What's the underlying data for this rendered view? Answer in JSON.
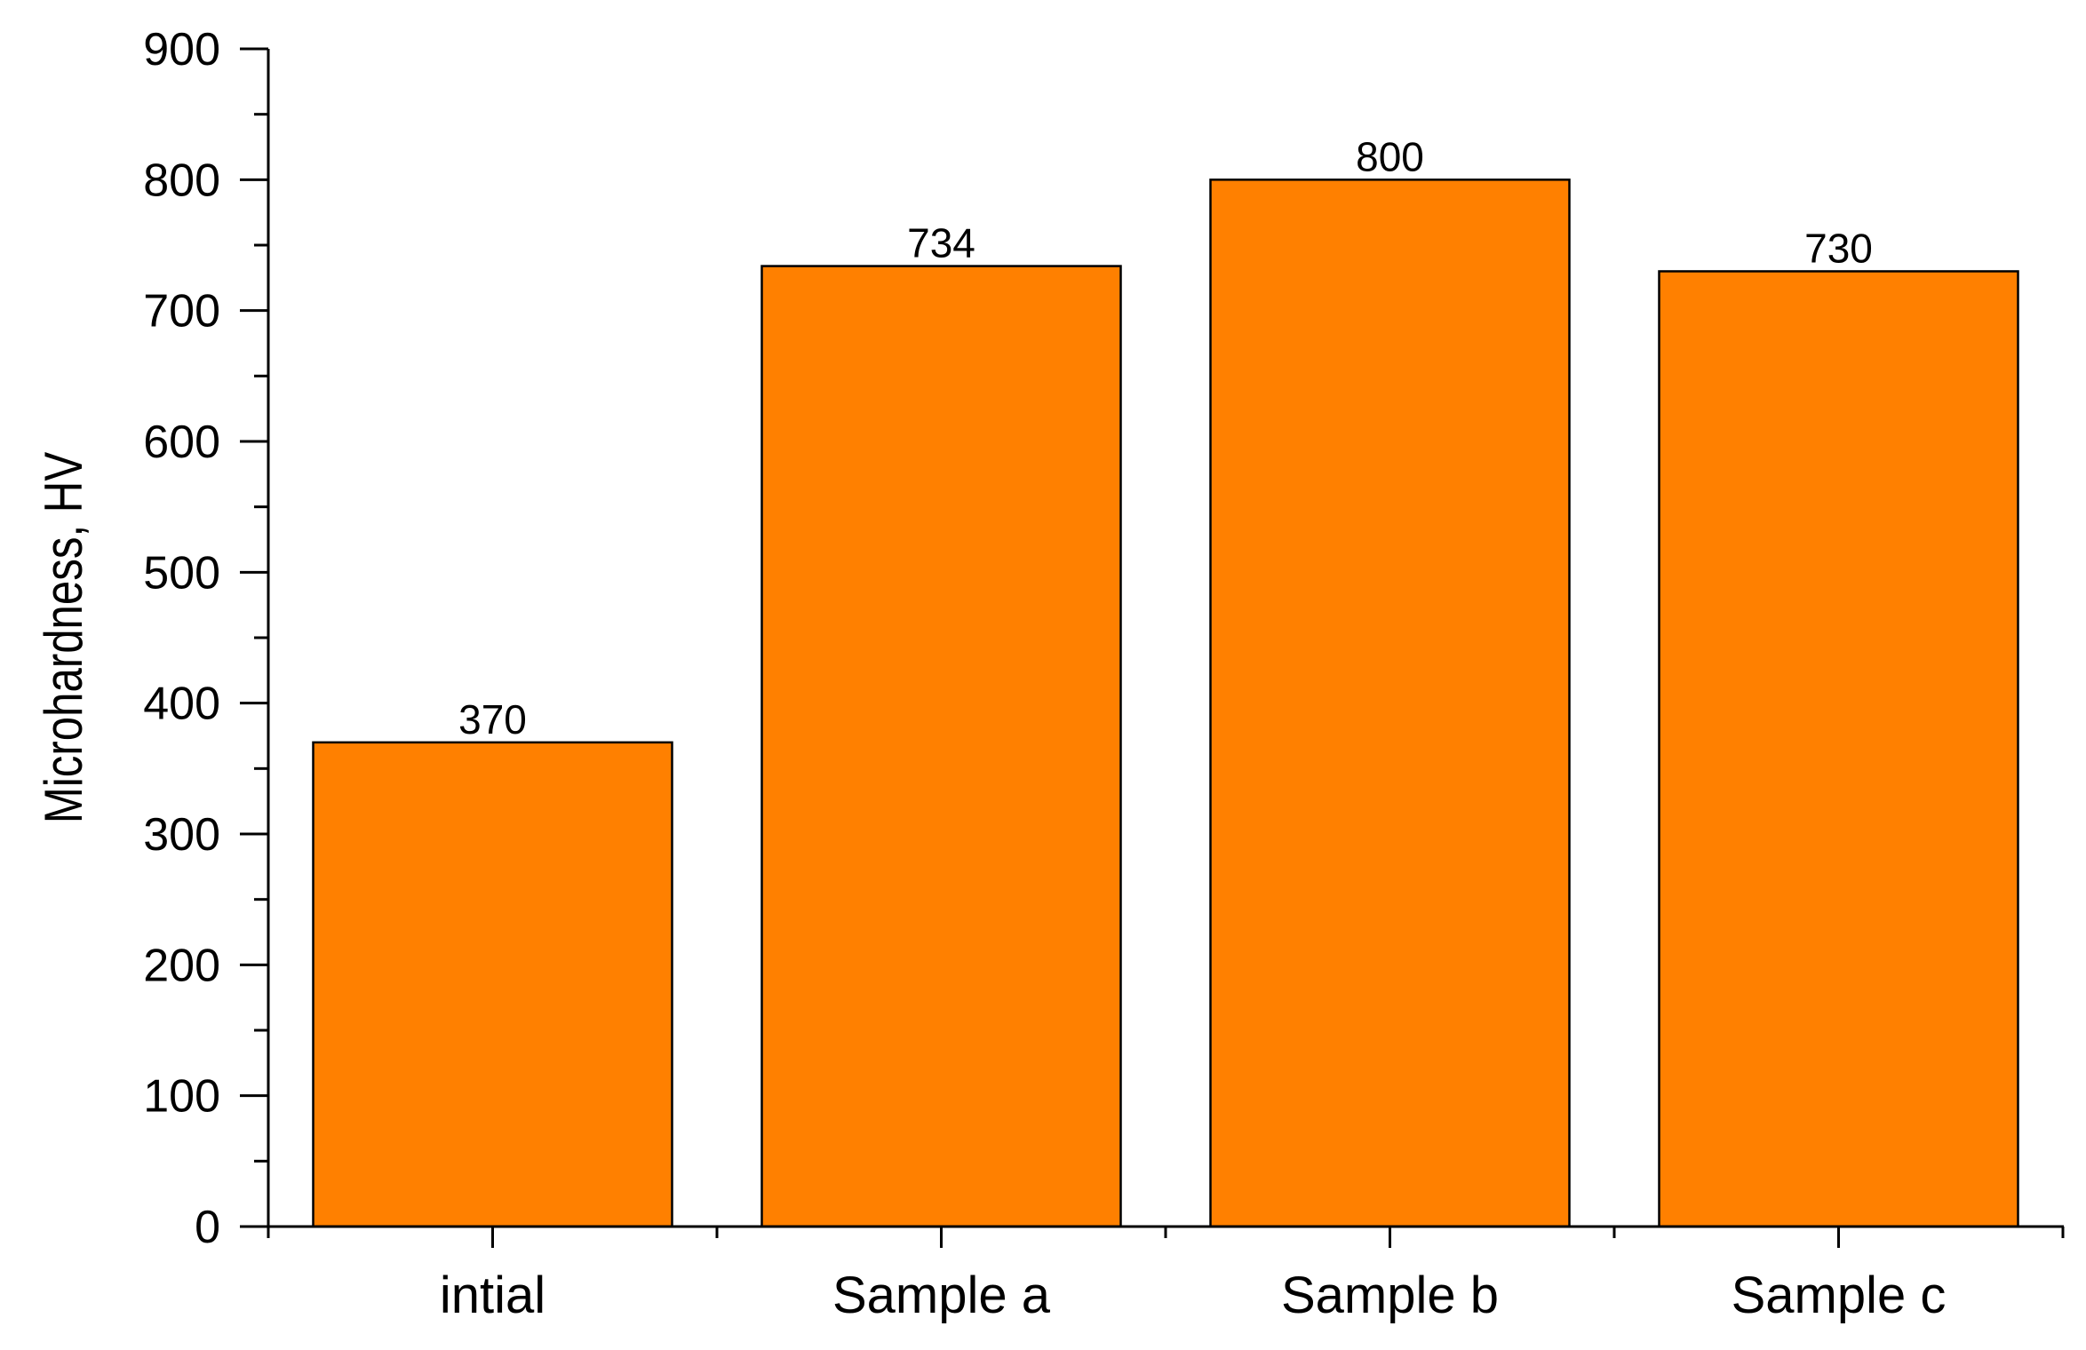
{
  "chart_data": {
    "type": "bar",
    "categories": [
      "intial",
      "Sample a",
      "Sample b",
      "Sample c"
    ],
    "values": [
      370,
      734,
      800,
      730
    ],
    "data_labels": [
      "370",
      "734",
      "800",
      "730"
    ],
    "title": "",
    "xlabel": "",
    "ylabel": "Microhardness, HV",
    "ylim": [
      0,
      900
    ],
    "yticks": [
      0,
      100,
      200,
      300,
      400,
      500,
      600,
      700,
      800,
      900
    ],
    "ytick_labels": [
      "0",
      "100",
      "200",
      "300",
      "400",
      "500",
      "600",
      "700",
      "800",
      "900"
    ],
    "minor_ytick_step": 50,
    "grid": false,
    "legend": "none",
    "colors": {
      "bar_fill": "#FF8000",
      "bar_stroke": "#000000",
      "axis": "#000000"
    }
  }
}
